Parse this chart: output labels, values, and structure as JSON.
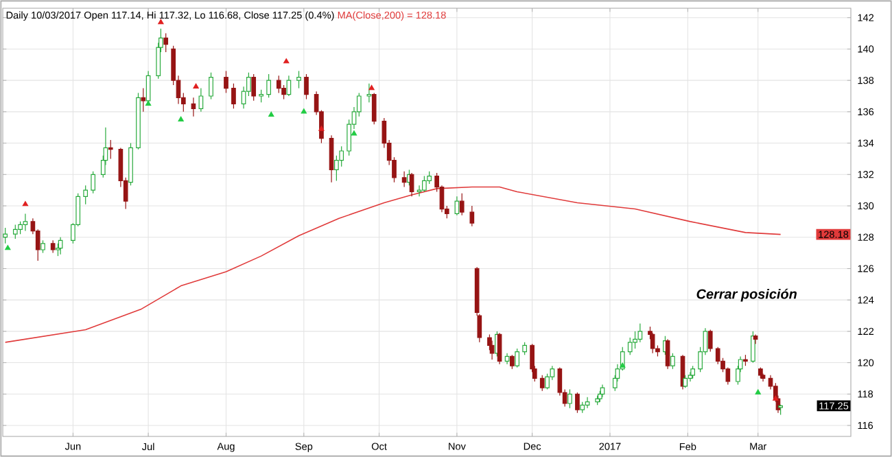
{
  "chart_data": {
    "type": "candlestick",
    "title": "Daily 10/03/2017 Open 117.14, Hi 117.32, Lo 116.68, Close 117.25 (0.4%)",
    "x": [
      "2016-05-05",
      "2016-05-09",
      "2016-05-11",
      "2016-05-13",
      "2016-05-16",
      "2016-05-18",
      "2016-05-20",
      "2016-05-24",
      "2016-05-26",
      "2016-05-27",
      "2016-06-01",
      "2016-06-03",
      "2016-06-06",
      "2016-06-09",
      "2016-06-13",
      "2016-06-14",
      "2016-06-16",
      "2016-06-20",
      "2016-06-22",
      "2016-06-24",
      "2016-06-27",
      "2016-06-29",
      "2016-07-01",
      "2016-07-05",
      "2016-07-06",
      "2016-07-08",
      "2016-07-11",
      "2016-07-13",
      "2016-07-15",
      "2016-07-19",
      "2016-07-22",
      "2016-07-26",
      "2016-08-01",
      "2016-08-04",
      "2016-08-08",
      "2016-08-10",
      "2016-08-12",
      "2016-08-15",
      "2016-08-18",
      "2016-08-22",
      "2016-08-24",
      "2016-08-26",
      "2016-08-30",
      "2016-09-02",
      "2016-09-06",
      "2016-09-08",
      "2016-09-12",
      "2016-09-14",
      "2016-09-16",
      "2016-09-19",
      "2016-09-21",
      "2016-09-23",
      "2016-09-27",
      "2016-09-29",
      "2016-10-03",
      "2016-10-05",
      "2016-10-07",
      "2016-10-11",
      "2016-10-13",
      "2016-10-14",
      "2016-10-17",
      "2016-10-19",
      "2016-10-21",
      "2016-10-24",
      "2016-10-26",
      "2016-10-28",
      "2016-11-01",
      "2016-11-03",
      "2016-11-07",
      "2016-11-09",
      "2016-11-10",
      "2016-11-14",
      "2016-11-15",
      "2016-11-17",
      "2016-11-18",
      "2016-11-21",
      "2016-11-23",
      "2016-11-25",
      "2016-11-28",
      "2016-12-01",
      "2016-12-02",
      "2016-12-05",
      "2016-12-07",
      "2016-12-09",
      "2016-12-12",
      "2016-12-14",
      "2016-12-16",
      "2016-12-19",
      "2016-12-21",
      "2016-12-23",
      "2016-12-27",
      "2016-12-28",
      "2016-12-29",
      "2017-01-03",
      "2017-01-04",
      "2017-01-06",
      "2017-01-09",
      "2017-01-11",
      "2017-01-13",
      "2017-01-17",
      "2017-01-18",
      "2017-01-20",
      "2017-01-23",
      "2017-01-24",
      "2017-01-26",
      "2017-01-30",
      "2017-01-31",
      "2017-02-02",
      "2017-02-03",
      "2017-02-06",
      "2017-02-08",
      "2017-02-10",
      "2017-02-13",
      "2017-02-15",
      "2017-02-17",
      "2017-02-21",
      "2017-02-22",
      "2017-02-24",
      "2017-02-27",
      "2017-02-28",
      "2017-03-02",
      "2017-03-03",
      "2017-03-06",
      "2017-03-08",
      "2017-03-09",
      "2017-03-10"
    ],
    "ohlc": [
      [
        128.0,
        128.6,
        127.6,
        128.2
      ],
      [
        128.2,
        128.8,
        127.9,
        128.5
      ],
      [
        128.5,
        129.0,
        128.2,
        128.8
      ],
      [
        128.8,
        129.5,
        128.4,
        129.0
      ],
      [
        129.0,
        129.2,
        128.2,
        128.4
      ],
      [
        128.4,
        128.5,
        126.5,
        127.2
      ],
      [
        127.2,
        127.8,
        127.0,
        127.6
      ],
      [
        127.6,
        127.8,
        127.0,
        127.2
      ],
      [
        127.2,
        127.6,
        126.8,
        127.3
      ],
      [
        127.3,
        128.0,
        126.9,
        127.8
      ],
      [
        127.8,
        128.9,
        127.6,
        128.8
      ],
      [
        128.8,
        130.8,
        128.7,
        130.6
      ],
      [
        130.6,
        131.3,
        130.1,
        131.0
      ],
      [
        131.0,
        132.2,
        130.8,
        132.0
      ],
      [
        132.0,
        133.2,
        131.8,
        132.9
      ],
      [
        132.9,
        135.0,
        132.6,
        133.7
      ],
      [
        133.7,
        134.2,
        133.0,
        133.6
      ],
      [
        133.6,
        133.7,
        131.2,
        131.6
      ],
      [
        131.6,
        131.8,
        129.8,
        130.3
      ],
      [
        131.5,
        134.0,
        131.3,
        133.7
      ],
      [
        133.7,
        137.2,
        133.6,
        136.9
      ],
      [
        136.9,
        137.5,
        136.0,
        136.7
      ],
      [
        136.7,
        138.6,
        136.4,
        138.3
      ],
      [
        138.3,
        140.4,
        138.1,
        140.1
      ],
      [
        140.1,
        141.3,
        139.8,
        140.7
      ],
      [
        140.7,
        141.0,
        139.8,
        140.3
      ],
      [
        140.0,
        140.2,
        137.7,
        138.0
      ],
      [
        138.0,
        138.3,
        136.5,
        136.9
      ],
      [
        136.9,
        137.2,
        136.0,
        136.5
      ],
      [
        136.5,
        136.9,
        135.7,
        136.2
      ],
      [
        136.2,
        137.5,
        136.0,
        137.0
      ],
      [
        137.0,
        138.5,
        136.8,
        138.2
      ],
      [
        138.2,
        138.6,
        137.2,
        137.5
      ],
      [
        137.5,
        137.8,
        136.2,
        136.5
      ],
      [
        136.5,
        137.6,
        136.2,
        137.3
      ],
      [
        137.3,
        138.5,
        137.0,
        138.2
      ],
      [
        138.2,
        138.4,
        136.7,
        137.0
      ],
      [
        137.0,
        137.4,
        136.6,
        137.1
      ],
      [
        137.1,
        138.4,
        136.9,
        138.0
      ],
      [
        138.0,
        138.3,
        137.2,
        137.5
      ],
      [
        137.5,
        137.7,
        136.8,
        137.1
      ],
      [
        137.1,
        138.3,
        137.0,
        138.0
      ],
      [
        138.0,
        138.6,
        137.5,
        138.2
      ],
      [
        138.2,
        138.4,
        136.8,
        137.1
      ],
      [
        137.1,
        137.3,
        135.8,
        136.0
      ],
      [
        136.0,
        136.1,
        134.0,
        134.3
      ],
      [
        134.3,
        134.5,
        131.5,
        132.3
      ],
      [
        132.3,
        133.2,
        131.6,
        132.9
      ],
      [
        132.9,
        133.8,
        132.5,
        133.5
      ],
      [
        133.5,
        135.5,
        133.2,
        135.2
      ],
      [
        135.2,
        136.3,
        134.9,
        136.0
      ],
      [
        136.0,
        137.2,
        135.7,
        137.0
      ],
      [
        137.0,
        137.8,
        136.6,
        137.1
      ],
      [
        137.1,
        137.2,
        135.2,
        135.4
      ],
      [
        135.4,
        135.6,
        133.7,
        134.0
      ],
      [
        134.0,
        134.2,
        132.6,
        132.9
      ],
      [
        132.9,
        133.1,
        131.5,
        131.8
      ],
      [
        131.8,
        132.2,
        131.2,
        131.5
      ],
      [
        131.5,
        132.3,
        131.3,
        132.0
      ],
      [
        132.0,
        132.1,
        130.6,
        130.9
      ],
      [
        130.9,
        131.3,
        130.6,
        131.0
      ],
      [
        131.0,
        131.9,
        130.9,
        131.6
      ],
      [
        131.6,
        132.2,
        131.4,
        131.9
      ],
      [
        131.9,
        132.1,
        130.9,
        131.2
      ],
      [
        131.2,
        131.3,
        129.6,
        129.8
      ],
      [
        129.8,
        130.0,
        129.2,
        129.5
      ],
      [
        129.5,
        130.6,
        129.4,
        130.3
      ],
      [
        130.3,
        130.8,
        129.4,
        129.6
      ],
      [
        129.6,
        130.0,
        128.7,
        128.9
      ],
      [
        126.0,
        126.1,
        123.0,
        123.2
      ],
      [
        123.0,
        123.1,
        121.3,
        121.6
      ],
      [
        121.6,
        121.8,
        120.8,
        121.1
      ],
      [
        121.1,
        121.4,
        120.2,
        120.6
      ],
      [
        120.6,
        122.0,
        120.4,
        121.8
      ],
      [
        121.8,
        121.9,
        119.9,
        120.1
      ],
      [
        120.1,
        120.6,
        119.9,
        120.4
      ],
      [
        120.4,
        120.5,
        119.6,
        119.8
      ],
      [
        119.8,
        120.9,
        119.7,
        120.7
      ],
      [
        120.7,
        121.3,
        120.5,
        121.1
      ],
      [
        121.1,
        121.2,
        119.4,
        119.6
      ],
      [
        119.6,
        119.8,
        118.8,
        119.0
      ],
      [
        119.0,
        119.2,
        118.2,
        118.4
      ],
      [
        118.4,
        119.3,
        118.3,
        119.1
      ],
      [
        119.1,
        119.8,
        118.9,
        119.6
      ],
      [
        119.6,
        119.7,
        117.9,
        118.1
      ],
      [
        118.1,
        118.3,
        117.2,
        117.4
      ],
      [
        117.4,
        118.3,
        117.1,
        118.0
      ],
      [
        118.0,
        118.1,
        116.8,
        117.0
      ],
      [
        117.0,
        117.5,
        116.8,
        117.3
      ],
      [
        117.3,
        117.8,
        117.1,
        117.5
      ],
      [
        117.5,
        117.9,
        117.3,
        117.7
      ],
      [
        117.7,
        118.2,
        117.5,
        118.0
      ],
      [
        118.0,
        118.6,
        117.8,
        118.4
      ],
      [
        118.4,
        119.2,
        118.2,
        119.0
      ],
      [
        119.0,
        119.9,
        118.8,
        119.6
      ],
      [
        119.6,
        121.0,
        119.5,
        120.7
      ],
      [
        120.7,
        121.6,
        120.5,
        121.3
      ],
      [
        121.3,
        122.0,
        120.9,
        121.5
      ],
      [
        121.5,
        122.5,
        121.3,
        122.0
      ],
      [
        122.0,
        122.3,
        121.5,
        121.8
      ],
      [
        121.8,
        121.9,
        120.6,
        120.9
      ],
      [
        120.9,
        121.1,
        120.4,
        120.7
      ],
      [
        120.7,
        121.7,
        120.5,
        121.4
      ],
      [
        121.4,
        121.5,
        119.6,
        119.8
      ],
      [
        119.8,
        120.6,
        119.6,
        120.4
      ],
      [
        120.4,
        120.5,
        118.3,
        118.5
      ],
      [
        118.5,
        119.2,
        118.4,
        119.0
      ],
      [
        119.0,
        119.4,
        118.8,
        119.2
      ],
      [
        119.2,
        119.8,
        119.0,
        119.6
      ],
      [
        119.6,
        121.0,
        119.4,
        120.7
      ],
      [
        120.7,
        122.2,
        120.5,
        122.0
      ],
      [
        122.0,
        122.1,
        120.7,
        120.9
      ],
      [
        120.9,
        121.0,
        119.9,
        120.1
      ],
      [
        120.1,
        120.3,
        119.4,
        119.6
      ],
      [
        119.6,
        119.7,
        118.6,
        118.8
      ],
      [
        118.8,
        119.8,
        118.6,
        119.6
      ],
      [
        119.6,
        120.4,
        119.4,
        120.2
      ],
      [
        120.2,
        120.5,
        119.8,
        120.1
      ],
      [
        120.1,
        122.0,
        120.0,
        121.7
      ],
      [
        121.7,
        121.8,
        121.2,
        121.5
      ],
      [
        119.6,
        119.7,
        119.0,
        119.2
      ],
      [
        119.2,
        119.3,
        118.8,
        119.0
      ],
      [
        119.0,
        119.2,
        118.3,
        118.5
      ],
      [
        118.5,
        118.7,
        117.5,
        117.7
      ],
      [
        117.7,
        117.9,
        116.8,
        117.0
      ],
      [
        117.14,
        117.32,
        116.68,
        117.25
      ]
    ],
    "series": [
      {
        "type": "line",
        "name": "MA(Close,200) = 128.18",
        "color": "#e03a3a",
        "x": [
          "2016-05-05",
          "2016-06-06",
          "2016-06-28",
          "2016-07-14",
          "2016-08-01",
          "2016-08-15",
          "2016-08-30",
          "2016-09-15",
          "2016-10-03",
          "2016-10-14",
          "2016-10-24",
          "2016-11-07",
          "2016-11-18",
          "2016-11-25",
          "2016-12-19",
          "2017-01-11",
          "2017-02-02",
          "2017-02-24",
          "2017-03-10"
        ],
        "values": [
          121.3,
          122.1,
          123.4,
          124.9,
          125.8,
          126.8,
          128.1,
          129.2,
          130.2,
          130.7,
          131.1,
          131.2,
          131.2,
          130.9,
          130.2,
          129.8,
          129.0,
          128.3,
          128.18
        ]
      },
      {
        "type": "scatter",
        "marker": "triangle",
        "color": "#e02020",
        "x": [
          "2016-05-13",
          "2016-07-06",
          "2016-07-20",
          "2016-08-25",
          "2016-09-08",
          "2016-09-28",
          "2017-03-08"
        ],
        "values": [
          130.1,
          141.7,
          137.6,
          139.2,
          134.9,
          137.5,
          117.7
        ]
      },
      {
        "type": "scatter",
        "marker": "triangle",
        "color": "#22cc44",
        "x": [
          "2016-05-06",
          "2016-07-01",
          "2016-07-14",
          "2016-08-19",
          "2016-09-01",
          "2016-09-21",
          "2017-01-06",
          "2017-03-01"
        ],
        "values": [
          127.3,
          136.5,
          135.5,
          135.8,
          136.0,
          134.6,
          119.8,
          118.1
        ]
      }
    ],
    "xlim": [
      "2016-05-04",
      "2017-04-07"
    ],
    "xticks": [
      {
        "value": "2016-06-01",
        "label": "Jun"
      },
      {
        "value": "2016-07-01",
        "label": "Jul"
      },
      {
        "value": "2016-08-01",
        "label": "Aug"
      },
      {
        "value": "2016-09-01",
        "label": "Sep"
      },
      {
        "value": "2016-10-01",
        "label": "Oct"
      },
      {
        "value": "2016-11-01",
        "label": "Nov"
      },
      {
        "value": "2016-12-01",
        "label": "Dec"
      },
      {
        "value": "2017-01-01",
        "label": "2017"
      },
      {
        "value": "2017-02-01",
        "label": "Feb"
      },
      {
        "value": "2017-03-01",
        "label": "Mar"
      }
    ],
    "ylim": [
      115.3,
      142.6
    ],
    "yticks": [
      116,
      118,
      120,
      122,
      124,
      126,
      128,
      130,
      132,
      134,
      136,
      138,
      140,
      142
    ],
    "grid": true,
    "annotations": [
      "Cerrar posición",
      {
        "text": "128.18",
        "y": 128.18
      },
      {
        "text": "117.25",
        "y": 117.25
      }
    ]
  }
}
